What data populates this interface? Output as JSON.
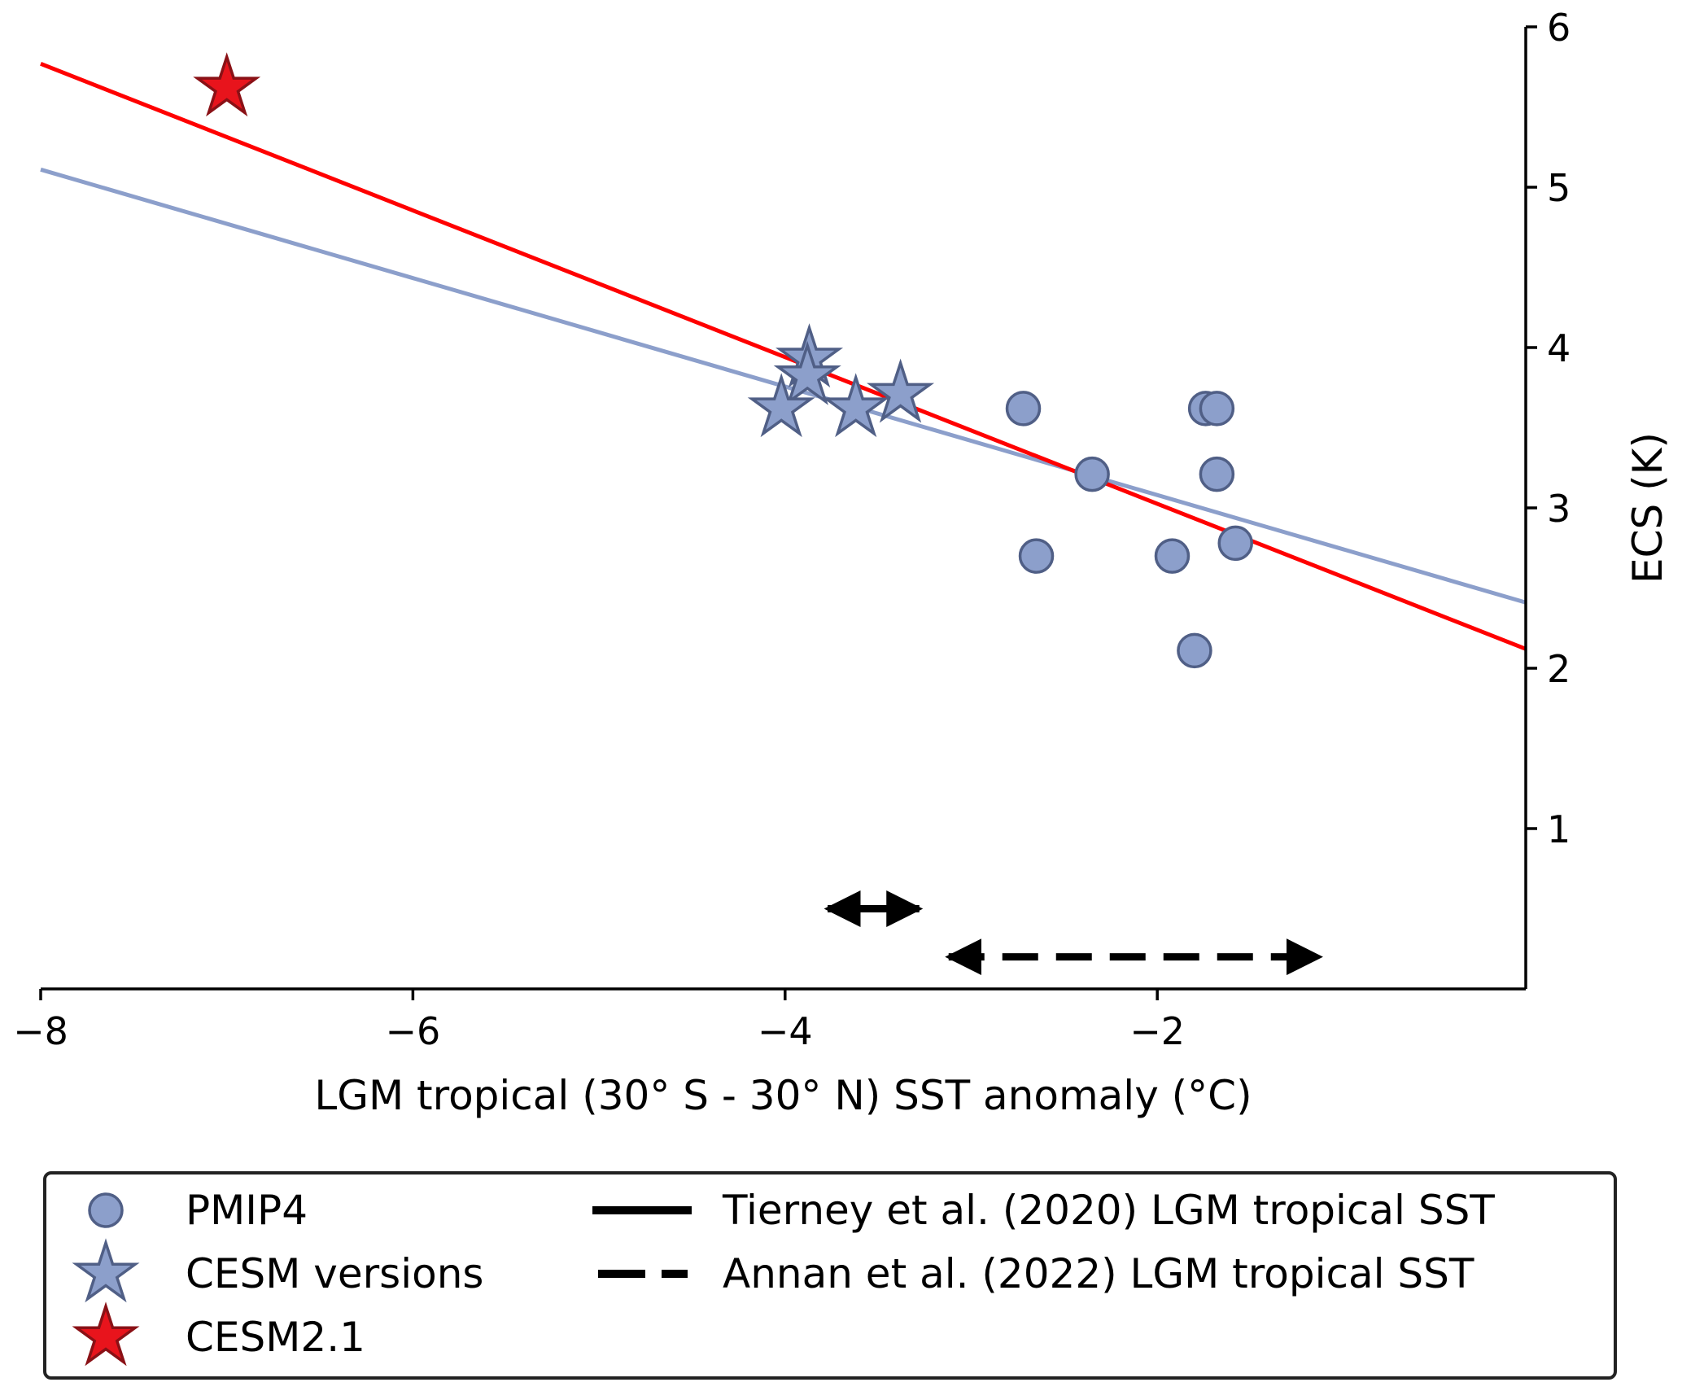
{
  "chart_data": {
    "type": "scatter",
    "title": "",
    "xlabel": "LGM tropical (30° S - 30° N) SST anomaly (°C)",
    "ylabel": "ECS (K)",
    "xlim": [
      -8.0,
      -0.02
    ],
    "ylim": [
      0.0,
      6.0
    ],
    "x_ticks": [
      -8,
      -6,
      -4,
      -2
    ],
    "x_tick_labels": [
      "−8",
      "−6",
      "−4",
      "−2"
    ],
    "y_ticks": [
      1,
      2,
      3,
      4,
      5,
      6
    ],
    "y_tick_labels": [
      "1",
      "2",
      "3",
      "4",
      "5",
      "6"
    ],
    "y_axis_side": "right",
    "grid": false,
    "series": [
      {
        "name": "PMIP4",
        "marker": "circle",
        "color": "#8c9fcb",
        "edge_color": "#505f86",
        "points": [
          {
            "x": -2.72,
            "y": 3.62
          },
          {
            "x": -1.74,
            "y": 3.62
          },
          {
            "x": -1.68,
            "y": 3.62
          },
          {
            "x": -2.35,
            "y": 3.21
          },
          {
            "x": -1.68,
            "y": 3.21
          },
          {
            "x": -2.65,
            "y": 2.7
          },
          {
            "x": -1.92,
            "y": 2.7
          },
          {
            "x": -1.58,
            "y": 2.78
          },
          {
            "x": -1.8,
            "y": 2.11
          }
        ]
      },
      {
        "name": "CESM versions",
        "marker": "star",
        "color": "#8c9fcb",
        "edge_color": "#505f86",
        "points": [
          {
            "x": -3.87,
            "y": 3.93
          },
          {
            "x": -3.88,
            "y": 3.82
          },
          {
            "x": -4.02,
            "y": 3.62
          },
          {
            "x": -3.62,
            "y": 3.62
          },
          {
            "x": -3.38,
            "y": 3.71
          }
        ]
      },
      {
        "name": "CESM2.1",
        "marker": "star",
        "color": "#e8141c",
        "edge_color": "#8a1116",
        "points": [
          {
            "x": -7.0,
            "y": 5.62
          }
        ]
      }
    ],
    "fit_lines": [
      {
        "name": "regression all models",
        "color": "#8c9fcb",
        "x": [
          -8.0,
          -0.02
        ],
        "y": [
          5.11,
          2.41
        ]
      },
      {
        "name": "regression incl. CESM2.1",
        "color": "#ff0000",
        "x": [
          -8.0,
          -0.02
        ],
        "y": [
          5.77,
          2.12
        ]
      }
    ],
    "ranges": [
      {
        "name": "Tierney et al. (2020) LGM tropical SST",
        "style": "solid",
        "x": [
          -3.85,
          -3.2
        ],
        "y": 0.5
      },
      {
        "name": "Annan et al. (2022) LGM tropical SST",
        "style": "dashed",
        "x": [
          -3.2,
          -1.05
        ],
        "y": 0.2
      }
    ],
    "legend": {
      "placement": "bottom",
      "entries": [
        {
          "label": "PMIP4",
          "marker": "circle",
          "color": "#8c9fcb"
        },
        {
          "label": "CESM versions",
          "marker": "star",
          "color": "#8c9fcb"
        },
        {
          "label": "CESM2.1",
          "marker": "star",
          "color": "#e8141c"
        },
        {
          "label": "Tierney et al. (2020) LGM tropical SST",
          "marker": "solid-line",
          "color": "#000000"
        },
        {
          "label": "Annan et al. (2022) LGM tropical SST",
          "marker": "dashed-line",
          "color": "#000000"
        }
      ]
    }
  }
}
